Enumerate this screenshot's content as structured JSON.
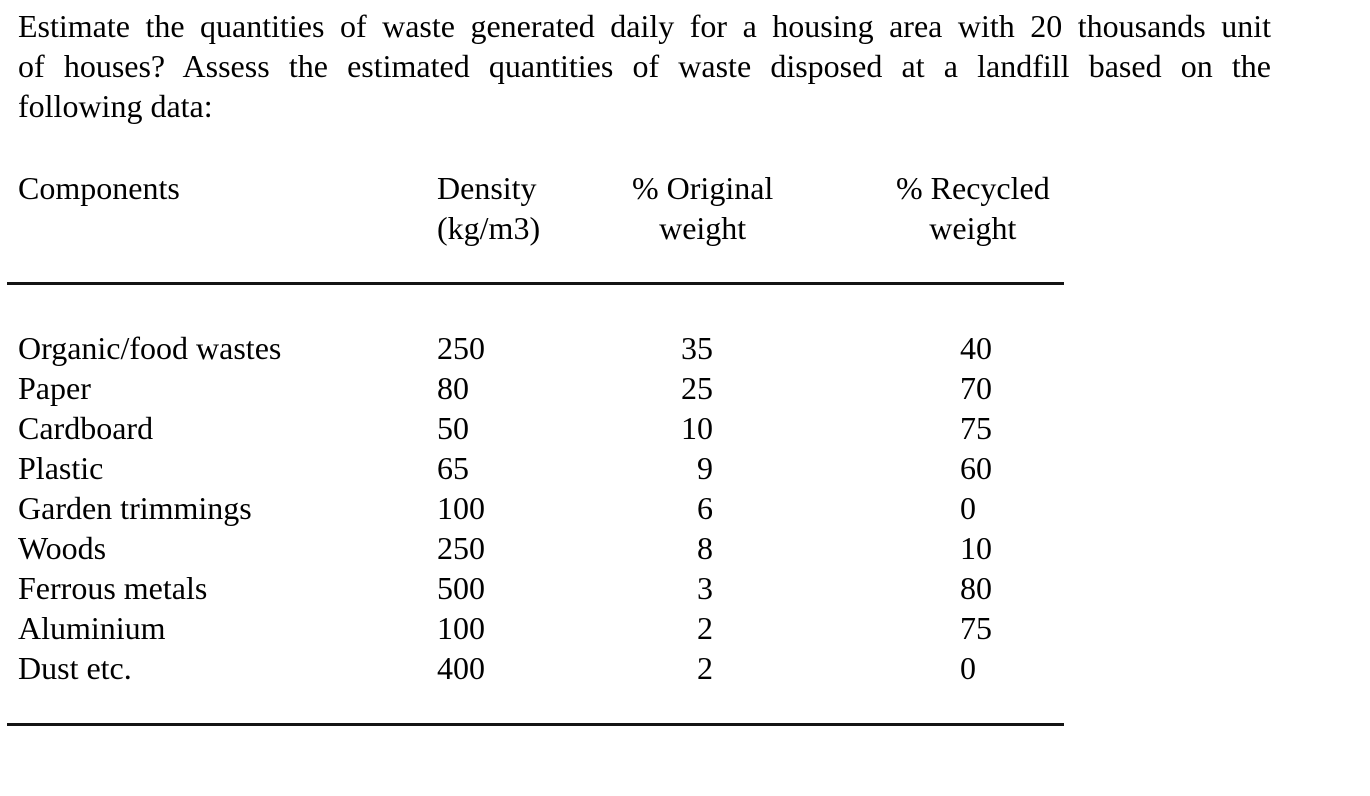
{
  "page": {
    "background": "#ffffff",
    "text_color": "#000000",
    "rule_color": "#141414"
  },
  "problem": {
    "lines": [
      "Estimate the quantities of waste generated daily for a housing area with 20 thousands unit",
      "of houses? Assess the estimated quantities of waste disposed at a landfill based on the",
      "following data:"
    ]
  },
  "table": {
    "headers": {
      "components": "Components",
      "density": [
        "Density",
        "(kg/m3)"
      ],
      "original": [
        "% Original",
        "weight"
      ],
      "recycled": [
        "% Recycled",
        "weight"
      ]
    },
    "rows": [
      {
        "component": "Organic/food wastes",
        "density": "250",
        "original_pct": "35",
        "recycled_pct": "40"
      },
      {
        "component": "Paper",
        "density": "80",
        "original_pct": "25",
        "recycled_pct": "70"
      },
      {
        "component": "Cardboard",
        "density": "50",
        "original_pct": "10",
        "recycled_pct": "75"
      },
      {
        "component": "Plastic",
        "density": "65",
        "original_pct": "9",
        "recycled_pct": "60"
      },
      {
        "component": "Garden trimmings",
        "density": "100",
        "original_pct": "6",
        "recycled_pct": "0"
      },
      {
        "component": "Woods",
        "density": "250",
        "original_pct": "8",
        "recycled_pct": "10"
      },
      {
        "component": "Ferrous metals",
        "density": "500",
        "original_pct": "3",
        "recycled_pct": "80"
      },
      {
        "component": "Aluminium",
        "density": "100",
        "original_pct": "2",
        "recycled_pct": "75"
      },
      {
        "component": "Dust etc.",
        "density": "400",
        "original_pct": "2",
        "recycled_pct": "0"
      }
    ]
  }
}
